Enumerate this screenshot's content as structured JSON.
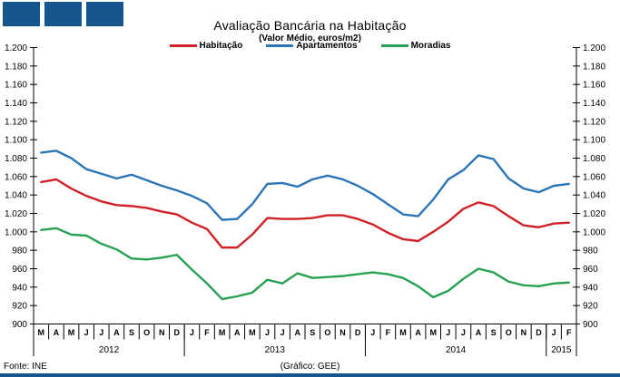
{
  "header": {
    "title": "Avaliação Bancária na Habitação",
    "subtitle": "(Valor Médio, euros/m2)"
  },
  "footer": {
    "source": "Fonte: INE",
    "credit": "(Gráfico: GEE)"
  },
  "logo": {
    "color": "#15568f",
    "square_count": 3
  },
  "bottom_bar_color": "#15568f",
  "chart_data": {
    "type": "line",
    "title": "Avaliação Bancária na Habitação",
    "subtitle": "(Valor Médio, euros/m2)",
    "xlabel": "",
    "ylabel": "euros/m2",
    "ylim": [
      900,
      1200
    ],
    "ytick_step": 20,
    "ytick_labels": [
      "900",
      "920",
      "940",
      "960",
      "980",
      "1.000",
      "1.020",
      "1.040",
      "1.060",
      "1.080",
      "1.100",
      "1.120",
      "1.140",
      "1.160",
      "1.180",
      "1.200"
    ],
    "grid": false,
    "legend_position": "top-center",
    "x_months": [
      "M",
      "A",
      "M",
      "J",
      "J",
      "A",
      "S",
      "O",
      "N",
      "D",
      "J",
      "F",
      "M",
      "A",
      "M",
      "J",
      "J",
      "A",
      "S",
      "O",
      "N",
      "D",
      "J",
      "F",
      "M",
      "A",
      "M",
      "J",
      "J",
      "A",
      "S",
      "O",
      "N",
      "D",
      "J",
      "F"
    ],
    "years": [
      {
        "label": "2012",
        "span": 10
      },
      {
        "label": "2013",
        "span": 12
      },
      {
        "label": "2014",
        "span": 12
      },
      {
        "label": "2015",
        "span": 2
      }
    ],
    "series": [
      {
        "name": "Habitação",
        "color": "#d02028",
        "values": [
          1054,
          1057,
          1047,
          1039,
          1033,
          1029,
          1028,
          1026,
          1022,
          1019,
          1010,
          1003,
          983,
          983,
          997,
          1015,
          1014,
          1014,
          1015,
          1018,
          1018,
          1014,
          1008,
          999,
          992,
          990,
          1000,
          1011,
          1025,
          1032,
          1028,
          1017,
          1007,
          1005,
          1009,
          1010
        ]
      },
      {
        "name": "Apartamentos",
        "color": "#2a75b8",
        "values": [
          1086,
          1088,
          1080,
          1068,
          1063,
          1058,
          1062,
          1056,
          1050,
          1045,
          1039,
          1031,
          1013,
          1014,
          1030,
          1052,
          1053,
          1049,
          1057,
          1061,
          1057,
          1050,
          1041,
          1030,
          1019,
          1017,
          1035,
          1057,
          1067,
          1083,
          1079,
          1058,
          1047,
          1043,
          1050,
          1052
        ]
      },
      {
        "name": "Moradias",
        "color": "#28a152",
        "values": [
          1002,
          1004,
          997,
          996,
          987,
          981,
          971,
          970,
          972,
          975,
          959,
          944,
          927,
          930,
          934,
          948,
          944,
          955,
          950,
          951,
          952,
          954,
          956,
          954,
          950,
          941,
          929,
          936,
          949,
          960,
          956,
          946,
          942,
          941,
          944,
          945
        ]
      }
    ]
  }
}
